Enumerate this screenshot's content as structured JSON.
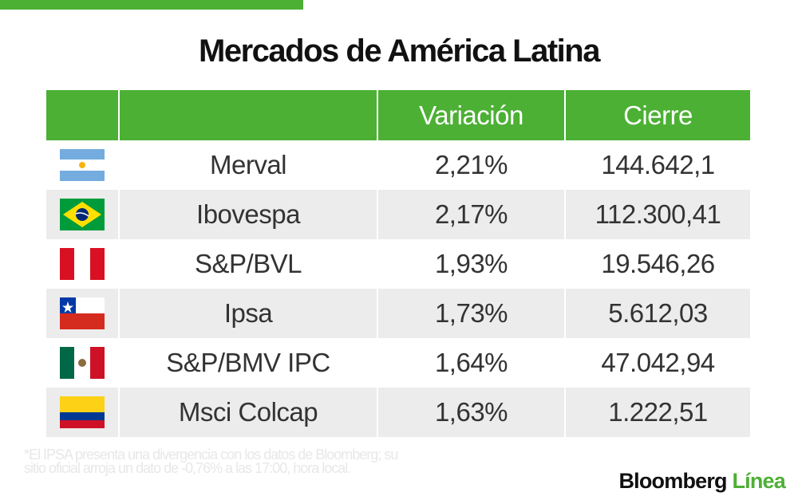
{
  "header": {
    "title": "Mercados de América Latina"
  },
  "table": {
    "columns": {
      "variation": "Variación",
      "close": "Cierre"
    },
    "rows": [
      {
        "name": "Merval",
        "variation": "2,21%",
        "close": "144.642,1"
      },
      {
        "name": "Ibovespa",
        "variation": "2,17%",
        "close": "112.300,41"
      },
      {
        "name": "S&P/BVL",
        "variation": "1,93%",
        "close": "19.546,26"
      },
      {
        "name": "Ipsa",
        "variation": "1,73%",
        "close": "5.612,03"
      },
      {
        "name": "S&P/BMV IPC",
        "variation": "1,64%",
        "close": "47.042,94"
      },
      {
        "name": "Msci Colcap",
        "variation": "1,63%",
        "close": "1.222,51"
      }
    ]
  },
  "footnote": "*El IPSA presenta una divergencia con los datos de Bloomberg; su sitio oficial arroja un dato de -0,76% a las 17:00, hora local.",
  "logo": {
    "brand": "Bloomberg",
    "product": "Línea"
  }
}
